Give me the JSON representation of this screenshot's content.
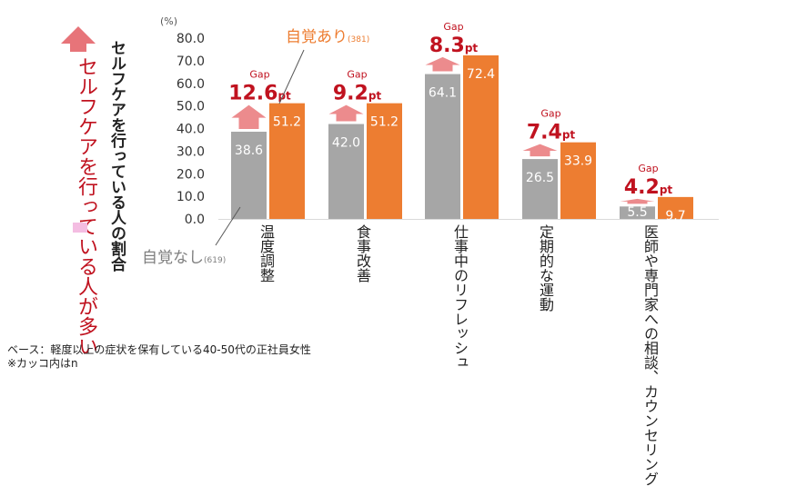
{
  "chart_data": {
    "type": "bar",
    "unit_label": "(%)",
    "ylabel": "セルフケアを行っている人の割合",
    "ylim": [
      0,
      80
    ],
    "yticks": [
      "0.0",
      "10.0",
      "20.0",
      "30.0",
      "40.0",
      "50.0",
      "60.0",
      "70.0",
      "80.0"
    ],
    "categories": [
      "温度調整",
      "食事改善",
      "仕事中のリフレッシュ",
      "定期的な運動",
      "医師や専門家への相談、カウンセリング"
    ],
    "series": [
      {
        "name": "自覚なし",
        "n": "(619)",
        "values": [
          38.6,
          42.0,
          64.1,
          26.5,
          5.5
        ],
        "color": "#a6a6a6"
      },
      {
        "name": "自覚あり",
        "n": "(381)",
        "values": [
          51.2,
          51.2,
          72.4,
          33.9,
          9.7
        ],
        "color": "#ed7d31"
      }
    ],
    "value_labels": {
      "none": [
        "38.6",
        "42.0",
        "64.1",
        "26.5",
        "5.5"
      ],
      "aware": [
        "51.2",
        "51.2",
        "72.4",
        "33.9",
        "9.7"
      ]
    },
    "gaps": [
      {
        "label": "Gap",
        "value": "12.6",
        "unit": "pt"
      },
      {
        "label": "Gap",
        "value": "9.2",
        "unit": "pt"
      },
      {
        "label": "Gap",
        "value": "8.3",
        "unit": "pt"
      },
      {
        "label": "Gap",
        "value": "7.4",
        "unit": "pt"
      },
      {
        "label": "Gap",
        "value": "4.2",
        "unit": "pt"
      }
    ],
    "side_callout": "セルフケアを行っている人が多い"
  },
  "colors": {
    "gap_text": "#c0121f",
    "gap_arrow": "#ec8b8d",
    "big_arrow": "#e77479",
    "aware_label": "#ed7d31",
    "pink_swatch": "#f4bde2"
  },
  "footnote": {
    "base": "ベース：軽度以上の症状を保有している40-50代の正社員女性",
    "n_note": "※カッコ内はn"
  }
}
